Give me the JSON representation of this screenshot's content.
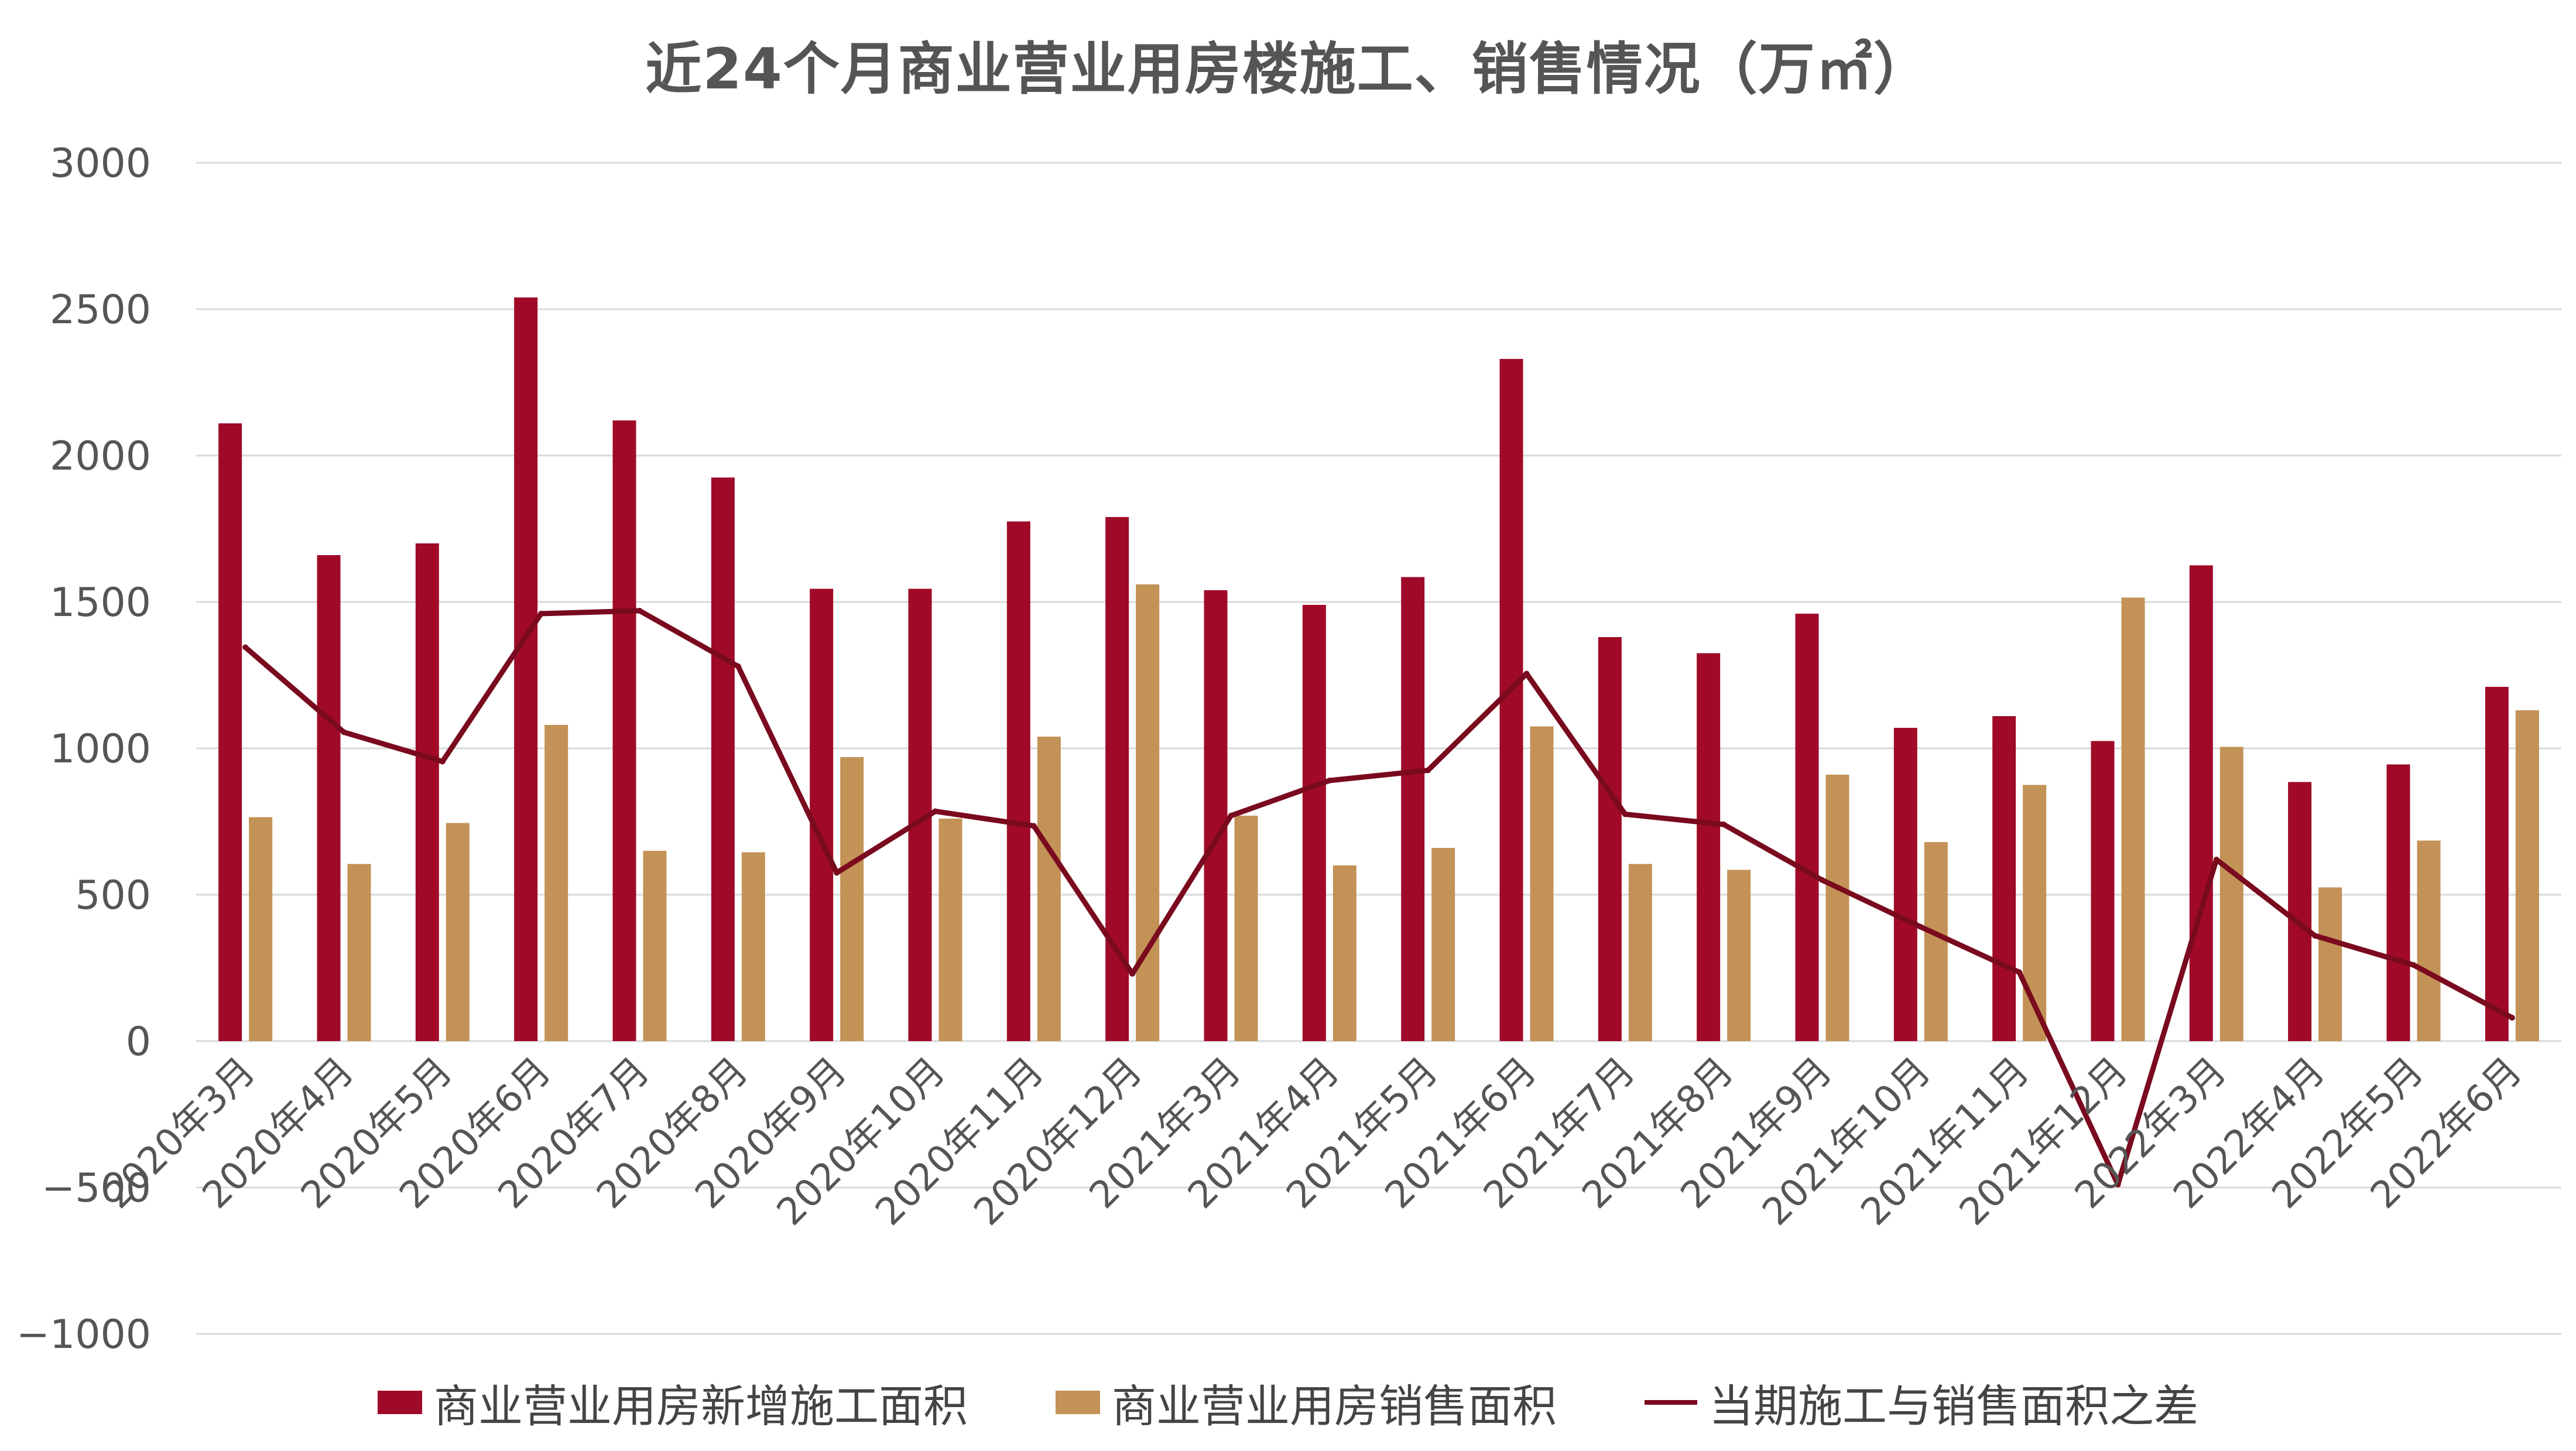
{
  "chart_data": {
    "type": "bar",
    "title": "近24个月商业营业用房楼施工、销售情况（万㎡）",
    "categories": [
      "2020年3月",
      "2020年4月",
      "2020年5月",
      "2020年6月",
      "2020年7月",
      "2020年8月",
      "2020年9月",
      "2020年10月",
      "2020年11月",
      "2020年12月",
      "2021年3月",
      "2021年4月",
      "2021年5月",
      "2021年6月",
      "2021年7月",
      "2021年8月",
      "2021年9月",
      "2021年10月",
      "2021年11月",
      "2021年12月",
      "2022年3月",
      "2022年4月",
      "2022年5月",
      "2022年6月"
    ],
    "series": [
      {
        "name": "商业营业用房新增施工面积",
        "type": "bar",
        "color": "#A00A28",
        "values": [
          2110,
          1660,
          1700,
          2540,
          2120,
          1925,
          1545,
          1545,
          1775,
          1790,
          1540,
          1490,
          1585,
          2330,
          1380,
          1325,
          1460,
          1070,
          1110,
          1025,
          1625,
          885,
          945,
          1210
        ]
      },
      {
        "name": "商业营业用房销售面积",
        "type": "bar",
        "color": "#C39257",
        "values": [
          765,
          605,
          745,
          1080,
          650,
          645,
          970,
          760,
          1040,
          1560,
          770,
          600,
          660,
          1075,
          605,
          585,
          910,
          680,
          875,
          1515,
          1005,
          525,
          685,
          1130
        ]
      },
      {
        "name": "当期施工与销售面积之差",
        "type": "line",
        "color": "#7A0A1E",
        "values": [
          1345,
          1055,
          955,
          1460,
          1470,
          1280,
          575,
          785,
          735,
          230,
          770,
          890,
          925,
          1255,
          775,
          740,
          550,
          390,
          235,
          -490,
          620,
          360,
          260,
          80
        ]
      }
    ],
    "ylim": [
      -1000,
      3000
    ],
    "yticks": [
      3000,
      2500,
      2000,
      1500,
      1000,
      500,
      0,
      -500,
      -1000
    ],
    "grid": true,
    "legend_position": "bottom"
  }
}
